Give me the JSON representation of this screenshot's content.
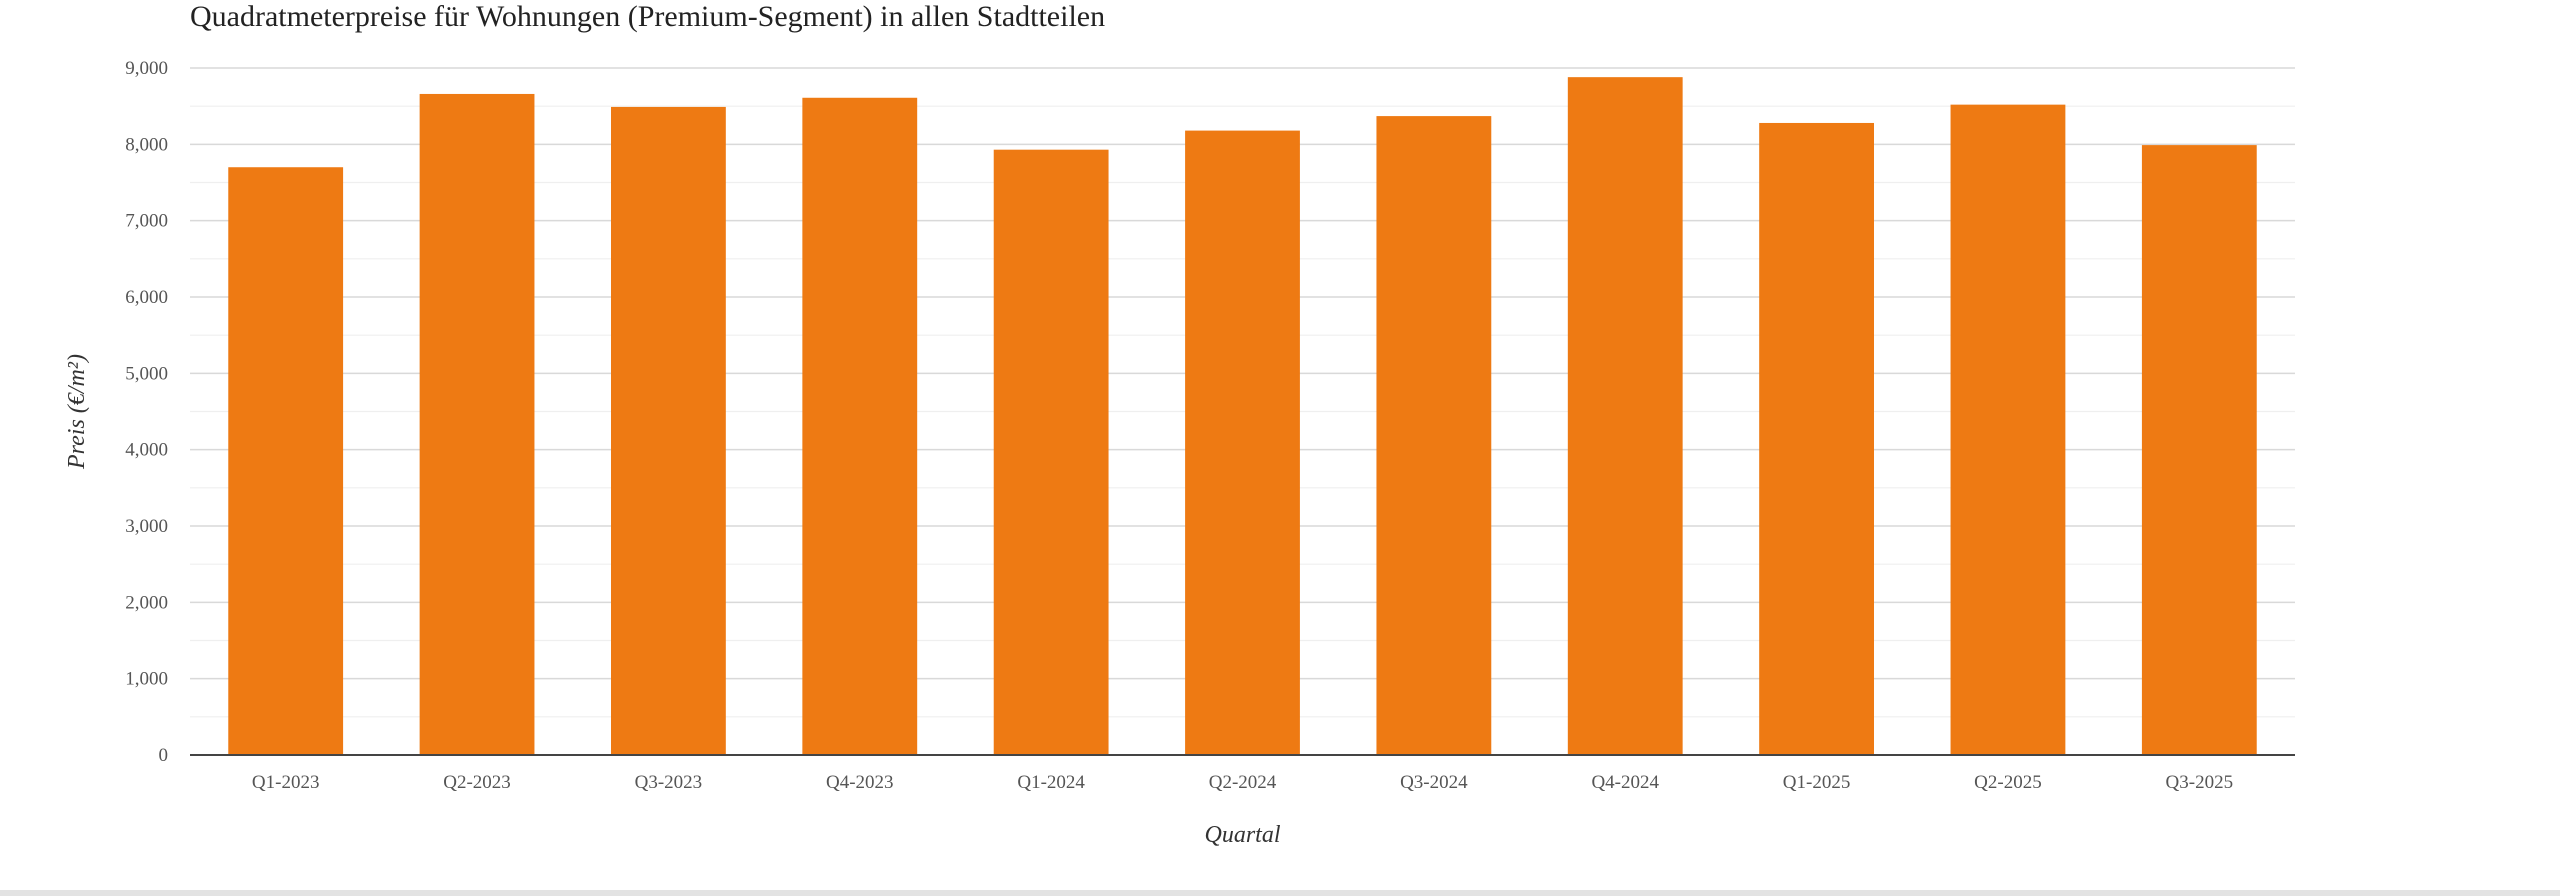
{
  "chart_data": {
    "type": "bar",
    "title": "Quadratmeterpreise für Wohnungen (Premium-Segment) in allen Stadtteilen",
    "xlabel": "Quartal",
    "ylabel": "Preis (€/m²)",
    "categories": [
      "Q1-2023",
      "Q2-2023",
      "Q3-2023",
      "Q4-2023",
      "Q1-2024",
      "Q2-2024",
      "Q3-2024",
      "Q4-2024",
      "Q1-2025",
      "Q2-2025",
      "Q3-2025"
    ],
    "values": [
      7700,
      8660,
      8490,
      8610,
      7930,
      8180,
      8370,
      8880,
      8280,
      8520,
      7990
    ],
    "ylim": [
      0,
      9000
    ],
    "yticks": [
      0,
      1000,
      2000,
      3000,
      4000,
      5000,
      6000,
      7000,
      8000,
      9000
    ],
    "ytick_labels": [
      "0",
      "1,000",
      "2,000",
      "3,000",
      "4,000",
      "5,000",
      "6,000",
      "7,000",
      "8,000",
      "9,000"
    ],
    "grid": true,
    "legend": "none",
    "bar_color": "#ee7a13"
  }
}
